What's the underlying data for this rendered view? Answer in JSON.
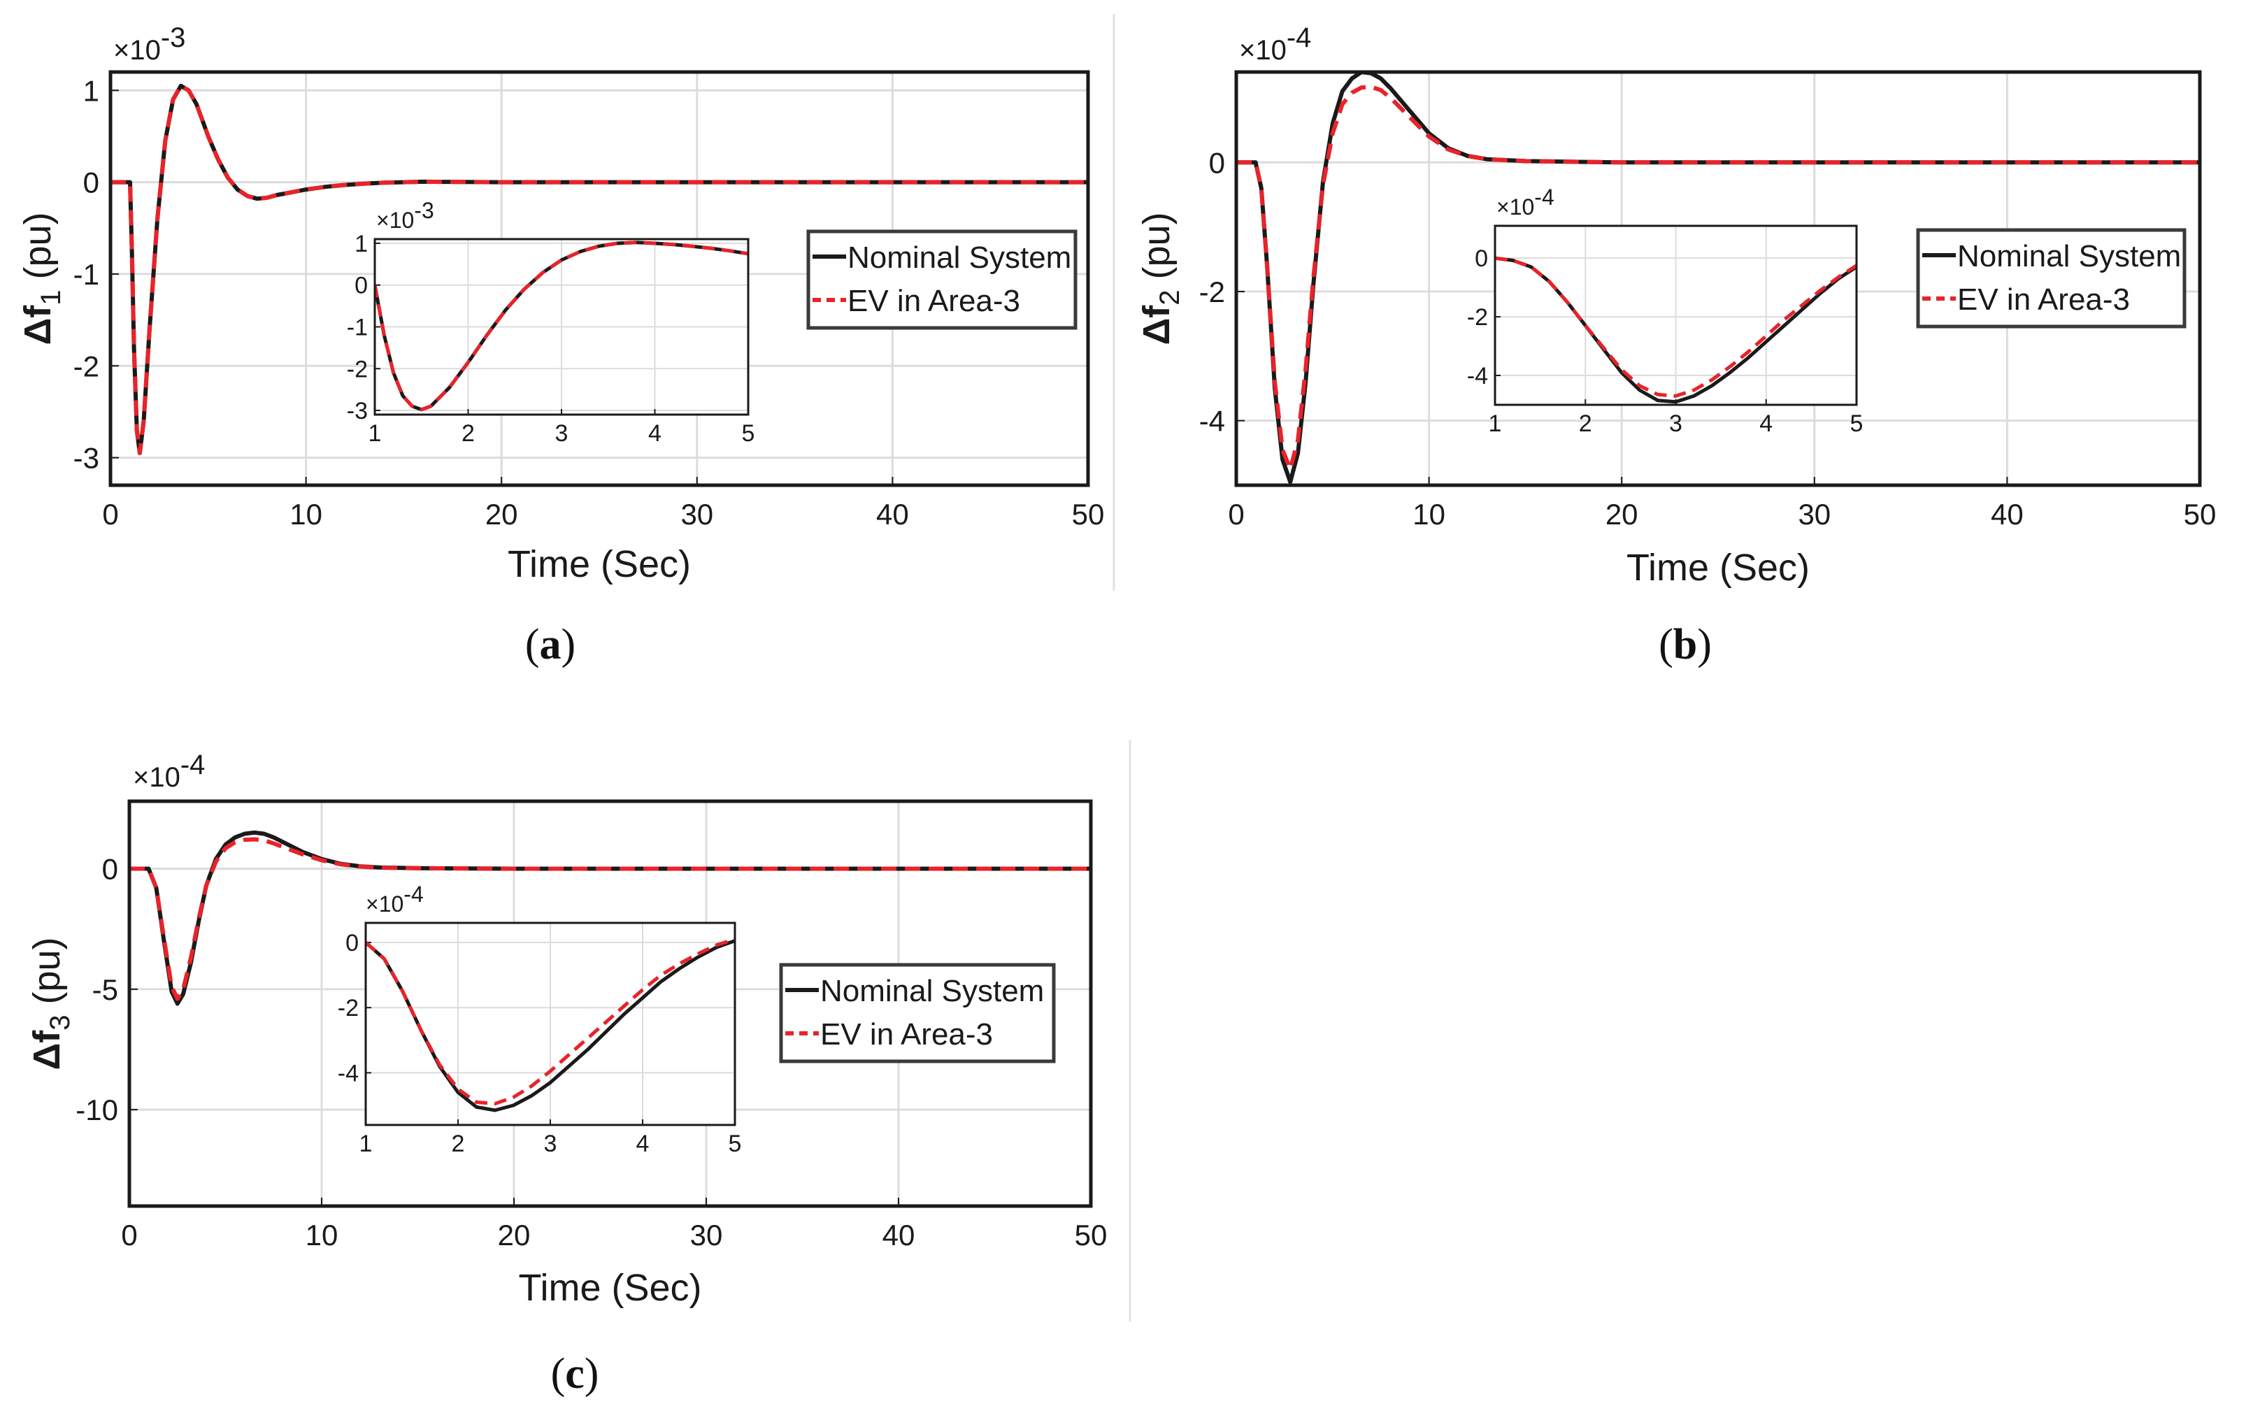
{
  "chart_data": [
    {
      "id": "a",
      "type": "line",
      "caption": "(a)",
      "xlabel": "Time (Sec)",
      "ylabel_main": "Δf",
      "ylabel_sub": "1",
      "ylabel_unit": "(pu)",
      "exponent_base": "×10",
      "exponent": "-3",
      "xlim": [
        0,
        50
      ],
      "ylim": [
        -3.3,
        1.2
      ],
      "xticks": [
        0,
        10,
        20,
        30,
        40,
        50
      ],
      "yticks": [
        1,
        0,
        -1,
        -2,
        -3
      ],
      "grid": true,
      "legend": "right",
      "series": [
        {
          "name": "Nominal System",
          "color": "#1a1a1a",
          "style": "solid",
          "x": [
            0,
            1,
            1.1,
            1.2,
            1.35,
            1.5,
            1.7,
            2,
            2.4,
            2.8,
            3.2,
            3.6,
            4,
            4.4,
            5,
            5.5,
            6,
            6.5,
            7,
            7.5,
            8,
            8.5,
            9,
            10,
            11,
            12,
            13,
            14,
            15,
            16,
            18,
            20,
            25,
            30,
            40,
            50
          ],
          "y": [
            0,
            0,
            -0.8,
            -1.8,
            -2.7,
            -2.95,
            -2.6,
            -1.6,
            -0.4,
            0.45,
            0.9,
            1.05,
            1.0,
            0.85,
            0.5,
            0.25,
            0.05,
            -0.08,
            -0.15,
            -0.18,
            -0.17,
            -0.14,
            -0.12,
            -0.08,
            -0.05,
            -0.03,
            -0.015,
            -0.005,
            0,
            0.005,
            0.002,
            0,
            0,
            0,
            0,
            0
          ]
        },
        {
          "name": "EV in Area-3",
          "color": "#e8232a",
          "style": "dashed",
          "x": [
            0,
            1,
            1.1,
            1.2,
            1.35,
            1.5,
            1.7,
            2,
            2.4,
            2.8,
            3.2,
            3.6,
            4,
            4.4,
            5,
            5.5,
            6,
            6.5,
            7,
            7.5,
            8,
            8.5,
            9,
            10,
            11,
            12,
            13,
            14,
            15,
            16,
            18,
            20,
            25,
            30,
            40,
            50
          ],
          "y": [
            0,
            0,
            -0.8,
            -1.8,
            -2.7,
            -2.95,
            -2.6,
            -1.6,
            -0.4,
            0.45,
            0.9,
            1.05,
            1.0,
            0.85,
            0.5,
            0.25,
            0.05,
            -0.08,
            -0.15,
            -0.18,
            -0.17,
            -0.14,
            -0.12,
            -0.08,
            -0.05,
            -0.03,
            -0.015,
            -0.005,
            0,
            0.005,
            0.002,
            0,
            0,
            0,
            0,
            0
          ]
        }
      ],
      "inset": {
        "exponent_base": "×10",
        "exponent": "-3",
        "xlim": [
          1,
          5
        ],
        "ylim": [
          -3.1,
          1.1
        ],
        "xticks": [
          1,
          2,
          3,
          4,
          5
        ],
        "yticks": [
          1,
          0,
          -1,
          -2,
          -3
        ],
        "series": [
          {
            "name": "Nominal System",
            "color": "#1a1a1a",
            "style": "solid",
            "x": [
              1,
              1.1,
              1.2,
              1.3,
              1.4,
              1.5,
              1.6,
              1.8,
              2,
              2.2,
              2.4,
              2.6,
              2.8,
              3,
              3.2,
              3.4,
              3.6,
              3.8,
              4,
              4.2,
              4.4,
              4.6,
              4.8,
              5
            ],
            "y": [
              0,
              -1.2,
              -2.1,
              -2.65,
              -2.9,
              -2.98,
              -2.9,
              -2.45,
              -1.85,
              -1.2,
              -0.6,
              -0.1,
              0.3,
              0.6,
              0.8,
              0.93,
              1.0,
              1.02,
              1.0,
              0.97,
              0.93,
              0.88,
              0.82,
              0.75
            ]
          },
          {
            "name": "EV in Area-3",
            "color": "#e8232a",
            "style": "dashed",
            "x": [
              1,
              1.1,
              1.2,
              1.3,
              1.4,
              1.5,
              1.6,
              1.8,
              2,
              2.2,
              2.4,
              2.6,
              2.8,
              3,
              3.2,
              3.4,
              3.6,
              3.8,
              4,
              4.2,
              4.4,
              4.6,
              4.8,
              5
            ],
            "y": [
              0,
              -1.2,
              -2.1,
              -2.65,
              -2.9,
              -2.98,
              -2.9,
              -2.45,
              -1.85,
              -1.2,
              -0.6,
              -0.1,
              0.3,
              0.6,
              0.8,
              0.93,
              1.0,
              1.02,
              1.0,
              0.97,
              0.93,
              0.88,
              0.82,
              0.75
            ]
          }
        ]
      }
    },
    {
      "id": "b",
      "type": "line",
      "caption": "(b)",
      "xlabel": "Time (Sec)",
      "ylabel_main": "Δf",
      "ylabel_sub": "2",
      "ylabel_unit": "(pu)",
      "exponent_base": "×10",
      "exponent": "-4",
      "xlim": [
        0,
        50
      ],
      "ylim": [
        -5.0,
        1.4
      ],
      "xticks": [
        0,
        10,
        20,
        30,
        40,
        50
      ],
      "yticks": [
        0,
        -2,
        -4
      ],
      "grid": true,
      "legend": "right",
      "series": [
        {
          "name": "Nominal System",
          "color": "#1a1a1a",
          "style": "solid",
          "x": [
            0,
            1,
            1.3,
            1.6,
            2,
            2.4,
            2.8,
            3.2,
            3.6,
            4,
            4.5,
            5,
            5.5,
            6,
            6.5,
            7,
            7.5,
            8,
            9,
            10,
            11,
            12,
            13,
            15,
            20,
            30,
            40,
            50
          ],
          "y": [
            0,
            0,
            -0.4,
            -1.6,
            -3.5,
            -4.6,
            -4.95,
            -4.5,
            -3.4,
            -1.9,
            -0.3,
            0.6,
            1.1,
            1.3,
            1.4,
            1.38,
            1.3,
            1.15,
            0.8,
            0.45,
            0.22,
            0.1,
            0.05,
            0.02,
            0,
            0,
            0,
            0
          ]
        },
        {
          "name": "EV in Area-3",
          "color": "#e8232a",
          "style": "dashed",
          "x": [
            0,
            1,
            1.3,
            1.6,
            2,
            2.4,
            2.8,
            3.2,
            3.6,
            4,
            4.5,
            5,
            5.5,
            6,
            6.5,
            7,
            7.5,
            8,
            9,
            10,
            11,
            12,
            13,
            15,
            20,
            30,
            40,
            50
          ],
          "y": [
            0,
            0,
            -0.4,
            -1.6,
            -3.4,
            -4.45,
            -4.75,
            -4.3,
            -3.2,
            -1.8,
            -0.35,
            0.45,
            0.9,
            1.08,
            1.16,
            1.17,
            1.12,
            1.0,
            0.7,
            0.4,
            0.2,
            0.1,
            0.05,
            0.02,
            0,
            0,
            0,
            0
          ]
        }
      ],
      "inset": {
        "exponent_base": "×10",
        "exponent": "-4",
        "xlim": [
          1,
          5
        ],
        "ylim": [
          -5.0,
          1.1
        ],
        "xticks": [
          1,
          2,
          3,
          4,
          5
        ],
        "yticks": [
          0,
          -2,
          -4
        ],
        "series": [
          {
            "name": "Nominal System",
            "color": "#1a1a1a",
            "style": "solid",
            "x": [
              1,
              1.2,
              1.4,
              1.6,
              1.8,
              2,
              2.2,
              2.4,
              2.6,
              2.8,
              3,
              3.2,
              3.4,
              3.6,
              3.8,
              4,
              4.2,
              4.4,
              4.6,
              4.8,
              5
            ],
            "y": [
              0,
              -0.08,
              -0.3,
              -0.8,
              -1.5,
              -2.3,
              -3.1,
              -3.9,
              -4.5,
              -4.85,
              -4.9,
              -4.7,
              -4.35,
              -3.9,
              -3.4,
              -2.85,
              -2.3,
              -1.75,
              -1.2,
              -0.7,
              -0.3
            ]
          },
          {
            "name": "EV in Area-3",
            "color": "#e8232a",
            "style": "dashed",
            "x": [
              1,
              1.2,
              1.4,
              1.6,
              1.8,
              2,
              2.2,
              2.4,
              2.6,
              2.8,
              3,
              3.2,
              3.4,
              3.6,
              3.8,
              4,
              4.2,
              4.4,
              4.6,
              4.8,
              5
            ],
            "y": [
              0,
              -0.08,
              -0.3,
              -0.8,
              -1.5,
              -2.3,
              -3.05,
              -3.8,
              -4.35,
              -4.65,
              -4.7,
              -4.5,
              -4.15,
              -3.7,
              -3.2,
              -2.65,
              -2.1,
              -1.6,
              -1.1,
              -0.65,
              -0.25
            ]
          }
        ]
      }
    },
    {
      "id": "c",
      "type": "line",
      "caption": "(c)",
      "xlabel": "Time (Sec)",
      "ylabel_main": "Δf",
      "ylabel_sub": "3",
      "ylabel_unit": "(pu)",
      "exponent_base": "×10",
      "exponent": "-4",
      "xlim": [
        0,
        50
      ],
      "ylim": [
        -14,
        2.8
      ],
      "xticks": [
        0,
        10,
        20,
        30,
        40,
        50
      ],
      "yticks": [
        0,
        -5,
        -10
      ],
      "grid": true,
      "legend": "right",
      "series": [
        {
          "name": "Nominal System",
          "color": "#1a1a1a",
          "style": "solid",
          "x": [
            0,
            1,
            1.4,
            1.8,
            2.2,
            2.5,
            2.8,
            3.2,
            3.6,
            4,
            4.5,
            5,
            5.5,
            6,
            6.5,
            7,
            7.5,
            8,
            9,
            10,
            11,
            12,
            13,
            15,
            20,
            30,
            40,
            50
          ],
          "y": [
            0,
            0,
            -0.8,
            -3,
            -5.1,
            -5.6,
            -5.2,
            -3.9,
            -2.2,
            -0.7,
            0.4,
            1.0,
            1.3,
            1.45,
            1.5,
            1.45,
            1.3,
            1.1,
            0.7,
            0.4,
            0.2,
            0.1,
            0.05,
            0.02,
            0,
            0,
            0,
            0
          ]
        },
        {
          "name": "EV in Area-3",
          "color": "#e8232a",
          "style": "dashed",
          "x": [
            0,
            1,
            1.4,
            1.8,
            2.2,
            2.5,
            2.8,
            3.2,
            3.6,
            4,
            4.5,
            5,
            5.5,
            6,
            6.5,
            7,
            7.5,
            8,
            9,
            10,
            11,
            12,
            13,
            15,
            20,
            30,
            40,
            50
          ],
          "y": [
            0,
            0,
            -0.8,
            -2.9,
            -4.9,
            -5.4,
            -5.0,
            -3.7,
            -2.1,
            -0.7,
            0.3,
            0.85,
            1.1,
            1.2,
            1.22,
            1.18,
            1.05,
            0.9,
            0.6,
            0.35,
            0.18,
            0.09,
            0.04,
            0.02,
            0,
            0,
            0,
            0
          ]
        }
      ],
      "inset": {
        "exponent_base": "×10",
        "exponent": "-4",
        "xlim": [
          1,
          5
        ],
        "ylim": [
          -5.6,
          0.6
        ],
        "xticks": [
          1,
          2,
          3,
          4,
          5
        ],
        "yticks": [
          0,
          -2,
          -4
        ],
        "series": [
          {
            "name": "Nominal System",
            "color": "#1a1a1a",
            "style": "solid",
            "x": [
              1,
              1.2,
              1.4,
              1.6,
              1.8,
              2,
              2.2,
              2.4,
              2.6,
              2.8,
              3,
              3.2,
              3.4,
              3.6,
              3.8,
              4,
              4.2,
              4.4,
              4.6,
              4.8,
              5
            ],
            "y": [
              0,
              -0.5,
              -1.5,
              -2.7,
              -3.8,
              -4.6,
              -5.05,
              -5.15,
              -5.0,
              -4.7,
              -4.3,
              -3.8,
              -3.3,
              -2.75,
              -2.2,
              -1.7,
              -1.2,
              -0.8,
              -0.45,
              -0.15,
              0.05
            ]
          },
          {
            "name": "EV in Area-3",
            "color": "#e8232a",
            "style": "dashed",
            "x": [
              1,
              1.2,
              1.4,
              1.6,
              1.8,
              2,
              2.2,
              2.4,
              2.6,
              2.8,
              3,
              3.2,
              3.4,
              3.6,
              3.8,
              4,
              4.2,
              4.4,
              4.6,
              4.8,
              5
            ],
            "y": [
              0,
              -0.5,
              -1.5,
              -2.7,
              -3.75,
              -4.5,
              -4.9,
              -4.95,
              -4.75,
              -4.4,
              -3.95,
              -3.45,
              -2.95,
              -2.45,
              -1.95,
              -1.45,
              -1.0,
              -0.65,
              -0.35,
              -0.08,
              0.1
            ]
          }
        ]
      }
    }
  ]
}
